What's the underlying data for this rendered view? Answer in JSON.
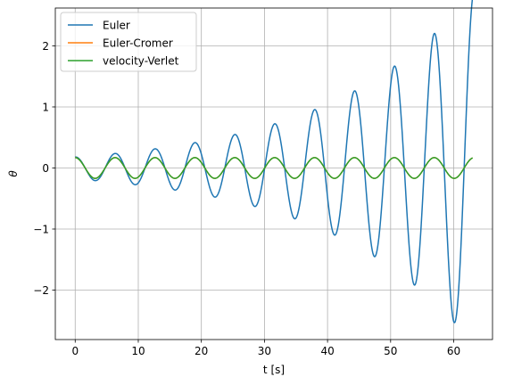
{
  "chart_data": {
    "type": "line",
    "xlabel": "t [s]",
    "ylabel": "θ",
    "xlim": [
      -3.15,
      66.15
    ],
    "ylim": [
      -2.81,
      2.62
    ],
    "xticks": [
      0,
      10,
      20,
      30,
      40,
      50,
      60
    ],
    "yticks": [
      -2,
      -1,
      0,
      1,
      2
    ],
    "xtick_labels": [
      "0",
      "10",
      "20",
      "30",
      "40",
      "50",
      "60"
    ],
    "ytick_labels": [
      "−2",
      "−1",
      "0",
      "1",
      "2"
    ],
    "grid": true,
    "legend_position": "top-left",
    "t_end": 63,
    "omega": 0.9936,
    "series": [
      {
        "name": "Euler",
        "color": "#1f77b4",
        "model": "growing",
        "amplitude0": 0.18,
        "growth_rate": 0.044
      },
      {
        "name": "Euler-Cromer",
        "color": "#ff7f0e",
        "model": "constant",
        "amplitude0": 0.17
      },
      {
        "name": "velocity-Verlet",
        "color": "#2ca02c",
        "model": "constant",
        "amplitude0": 0.17
      }
    ]
  }
}
